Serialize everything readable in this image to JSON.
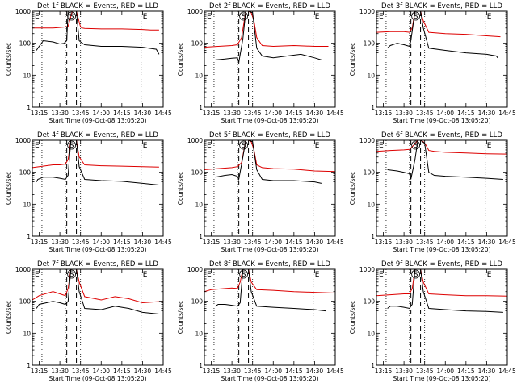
{
  "chart_data": [
    {
      "type": "line",
      "title": "Det 1f BLACK = Events, RED = LLD",
      "xlabel": "Start Time (09-Oct-08 13:05:20)",
      "ylabel": "Counts/sec",
      "yscale": "log",
      "ylim": [
        1,
        1000
      ],
      "xlim": [
        "13:10",
        "14:45"
      ],
      "xticks": [
        "13:15",
        "13:30",
        "13:45",
        "14:00",
        "14:15",
        "14:30",
        "14:45"
      ],
      "yticks": [
        "1",
        "10",
        "100",
        "1000"
      ],
      "markers": {
        "E1": "E",
        "S": "S",
        "E2": "E"
      },
      "series": [
        {
          "color": "#dd0000",
          "x": [
            "13:10",
            "13:25",
            "13:29",
            "13:33",
            "13:36",
            "13:39",
            "13:42",
            "13:45",
            "13:46",
            "13:48",
            "14:00",
            "14:15",
            "14:30",
            "14:36",
            "14:42"
          ],
          "y": [
            300,
            300,
            310,
            320,
            340,
            1000,
            1000,
            320,
            300,
            290,
            280,
            280,
            270,
            260,
            260
          ]
        },
        {
          "color": "#000000",
          "x": [
            "13:13",
            "13:14",
            "13:18",
            "13:25",
            "13:30",
            "13:33",
            "13:35",
            "13:36",
            "13:42",
            "13:44",
            "13:45",
            "13:48",
            "14:00",
            "14:15",
            "14:30",
            "14:40",
            "14:42"
          ],
          "y": [
            60,
            70,
            120,
            110,
            95,
            100,
            120,
            1000,
            1000,
            120,
            110,
            90,
            80,
            80,
            75,
            65,
            45
          ]
        }
      ],
      "vlines_dotted": [
        "13:17",
        "13:34",
        "13:45",
        "14:29"
      ],
      "vlines_dashed": [
        "13:35",
        "13:42"
      ]
    },
    {
      "type": "line",
      "title": "Det 2f BLACK = Events, RED = LLD",
      "xlabel": "Start Time (09-Oct-08 13:05:20)",
      "ylabel": "Counts/sec",
      "yscale": "log",
      "ylim": [
        1,
        1000
      ],
      "xlim": [
        "13:10",
        "14:45"
      ],
      "xticks": [
        "13:15",
        "13:30",
        "13:45",
        "14:00",
        "14:15",
        "14:30",
        "14:45"
      ],
      "yticks": [
        "1",
        "10",
        "100",
        "1000"
      ],
      "markers": {
        "E1": "E",
        "S": "S",
        "E2": "E"
      },
      "series": [
        {
          "color": "#dd0000",
          "x": [
            "13:10",
            "13:20",
            "13:30",
            "13:34",
            "13:37",
            "13:40",
            "13:42",
            "13:44",
            "13:46",
            "13:48",
            "13:52",
            "14:00",
            "14:15",
            "14:30",
            "14:40"
          ],
          "y": [
            75,
            80,
            85,
            90,
            150,
            1000,
            1000,
            900,
            500,
            150,
            85,
            80,
            85,
            80,
            80
          ]
        },
        {
          "color": "#000000",
          "x": [
            "13:18",
            "13:25",
            "13:30",
            "13:34",
            "13:35",
            "13:38",
            "13:40",
            "13:42",
            "13:45",
            "13:48",
            "13:52",
            "14:00",
            "14:10",
            "14:20",
            "14:30",
            "14:35"
          ],
          "y": [
            30,
            32,
            34,
            35,
            25,
            140,
            1000,
            1000,
            900,
            70,
            40,
            35,
            40,
            45,
            35,
            30
          ]
        }
      ],
      "vlines_dotted": [
        "13:17",
        "13:34",
        "13:45",
        "14:29"
      ],
      "vlines_dashed": [
        "13:35",
        "13:42"
      ]
    },
    {
      "type": "line",
      "title": "Det 3f BLACK = Events, RED = LLD",
      "xlabel": "Start Time (09-Oct-08 13:05:20)",
      "ylabel": "Counts/sec",
      "yscale": "log",
      "ylim": [
        1,
        1000
      ],
      "xlim": [
        "13:10",
        "14:45"
      ],
      "xticks": [
        "13:15",
        "13:30",
        "13:45",
        "14:00",
        "14:15",
        "14:30",
        "14:45"
      ],
      "yticks": [
        "1",
        "10",
        "100",
        "1000"
      ],
      "markers": {
        "E1": "E",
        "S": "S",
        "E2": "E"
      },
      "series": [
        {
          "color": "#dd0000",
          "x": [
            "13:10",
            "13:20",
            "13:30",
            "13:34",
            "13:36",
            "13:38",
            "13:42",
            "13:44",
            "13:48",
            "14:00",
            "14:15",
            "14:30",
            "14:40"
          ],
          "y": [
            220,
            230,
            230,
            220,
            300,
            1000,
            1000,
            500,
            220,
            200,
            190,
            170,
            160
          ]
        },
        {
          "color": "#000000",
          "x": [
            "13:18",
            "13:20",
            "13:25",
            "13:30",
            "13:34",
            "13:35",
            "13:38",
            "13:42",
            "13:44",
            "13:48",
            "14:00",
            "14:15",
            "14:30",
            "14:37",
            "14:38"
          ],
          "y": [
            70,
            85,
            100,
            90,
            80,
            120,
            1000,
            1000,
            300,
            70,
            60,
            50,
            45,
            40,
            35
          ]
        }
      ],
      "vlines_dotted": [
        "13:17",
        "13:34",
        "13:45",
        "14:29"
      ],
      "vlines_dashed": [
        "13:35",
        "13:42"
      ]
    },
    {
      "type": "line",
      "title": "Det 4f BLACK = Events, RED = LLD",
      "xlabel": "Start Time (09-Oct-08 13:05:20)",
      "ylabel": "Counts/sec",
      "yscale": "log",
      "ylim": [
        1,
        1000
      ],
      "xlim": [
        "13:10",
        "14:45"
      ],
      "xticks": [
        "13:15",
        "13:30",
        "13:45",
        "14:00",
        "14:15",
        "14:30",
        "14:45"
      ],
      "yticks": [
        "1",
        "10",
        "100",
        "1000"
      ],
      "markers": {
        "E1": "E",
        "S": "S",
        "E2": "E"
      },
      "series": [
        {
          "color": "#dd0000",
          "x": [
            "13:10",
            "13:15",
            "13:25",
            "13:30",
            "13:34",
            "13:36",
            "13:38",
            "13:42",
            "13:44",
            "13:48",
            "14:00",
            "14:15",
            "14:30",
            "14:42"
          ],
          "y": [
            140,
            150,
            170,
            170,
            180,
            250,
            1000,
            1000,
            300,
            170,
            160,
            155,
            150,
            145
          ]
        },
        {
          "color": "#000000",
          "x": [
            "13:13",
            "13:14",
            "13:18",
            "13:25",
            "13:30",
            "13:34",
            "13:36",
            "13:38",
            "13:42",
            "13:44",
            "13:48",
            "14:00",
            "14:15",
            "14:30",
            "14:42"
          ],
          "y": [
            50,
            60,
            70,
            70,
            65,
            60,
            80,
            1000,
            1000,
            150,
            60,
            55,
            52,
            45,
            40
          ]
        }
      ],
      "vlines_dotted": [
        "13:17",
        "13:34",
        "13:45",
        "14:29"
      ],
      "vlines_dashed": [
        "13:35",
        "13:42"
      ]
    },
    {
      "type": "line",
      "title": "Det 5f BLACK = Events, RED = LLD",
      "xlabel": "Start Time (09-Oct-08 13:05:20)",
      "ylabel": "Counts/sec",
      "yscale": "log",
      "ylim": [
        1,
        1000
      ],
      "xlim": [
        "13:10",
        "14:45"
      ],
      "xticks": [
        "13:15",
        "13:30",
        "13:45",
        "14:00",
        "14:15",
        "14:30",
        "14:45"
      ],
      "yticks": [
        "1",
        "10",
        "100",
        "1000"
      ],
      "markers": {
        "E1": "E",
        "S": "S",
        "E2": "E"
      },
      "series": [
        {
          "color": "#dd0000",
          "x": [
            "13:10",
            "13:20",
            "13:30",
            "13:34",
            "13:37",
            "13:40",
            "13:42",
            "13:44",
            "13:46",
            "13:48",
            "13:52",
            "14:00",
            "14:15",
            "14:30",
            "14:45"
          ],
          "y": [
            120,
            130,
            140,
            150,
            200,
            1000,
            1000,
            900,
            500,
            170,
            140,
            130,
            125,
            110,
            105
          ]
        },
        {
          "color": "#000000",
          "x": [
            "13:18",
            "13:25",
            "13:30",
            "13:34",
            "13:35",
            "13:38",
            "13:40",
            "13:42",
            "13:45",
            "13:48",
            "13:52",
            "14:00",
            "14:15",
            "14:30",
            "14:35"
          ],
          "y": [
            70,
            80,
            85,
            75,
            60,
            300,
            1000,
            1000,
            900,
            120,
            60,
            55,
            55,
            50,
            45
          ]
        }
      ],
      "vlines_dotted": [
        "13:17",
        "13:34",
        "13:45",
        "14:29"
      ],
      "vlines_dashed": [
        "13:35",
        "13:42"
      ]
    },
    {
      "type": "line",
      "title": "Det 6f BLACK = Events, RED = LLD",
      "xlabel": "Start Time (09-Oct-08 13:05:20)",
      "ylabel": "Counts/sec",
      "yscale": "log",
      "ylim": [
        1,
        1000
      ],
      "xlim": [
        "13:10",
        "14:45"
      ],
      "xticks": [
        "13:15",
        "13:30",
        "13:45",
        "14:00",
        "14:15",
        "14:30",
        "14:45"
      ],
      "yticks": [
        "1",
        "10",
        "100",
        "1000"
      ],
      "markers": {
        "E1": "E",
        "S": "S",
        "E2": "E"
      },
      "series": [
        {
          "color": "#dd0000",
          "x": [
            "13:10",
            "13:20",
            "13:30",
            "13:34",
            "13:37",
            "13:40",
            "13:42",
            "13:44",
            "13:46",
            "13:48",
            "13:52",
            "14:00",
            "14:15",
            "14:30",
            "14:45"
          ],
          "y": [
            450,
            480,
            500,
            520,
            700,
            1000,
            1000,
            900,
            700,
            480,
            450,
            420,
            400,
            380,
            370
          ]
        },
        {
          "color": "#000000",
          "x": [
            "13:18",
            "13:25",
            "13:30",
            "13:34",
            "13:35",
            "13:38",
            "13:40",
            "13:42",
            "13:45",
            "13:48",
            "13:52",
            "14:00",
            "14:15",
            "14:30",
            "14:42"
          ],
          "y": [
            120,
            110,
            100,
            90,
            60,
            250,
            1000,
            1000,
            800,
            100,
            80,
            75,
            70,
            65,
            60
          ]
        }
      ],
      "vlines_dotted": [
        "13:17",
        "13:34",
        "13:45",
        "14:29"
      ],
      "vlines_dashed": [
        "13:35",
        "13:42"
      ]
    },
    {
      "type": "line",
      "title": "Det 7f BLACK = Events, RED = LLD",
      "xlabel": "Start Time (09-Oct-08 13:05:20)",
      "ylabel": "Counts/sec",
      "yscale": "log",
      "ylim": [
        1,
        1000
      ],
      "xlim": [
        "13:10",
        "14:45"
      ],
      "xticks": [
        "13:15",
        "13:30",
        "13:45",
        "14:00",
        "14:15",
        "14:30",
        "14:45"
      ],
      "yticks": [
        "1",
        "10",
        "100",
        "1000"
      ],
      "markers": {
        "E1": "E",
        "S": "S",
        "E2": "E"
      },
      "series": [
        {
          "color": "#dd0000",
          "x": [
            "13:10",
            "13:15",
            "13:25",
            "13:30",
            "13:34",
            "13:36",
            "13:38",
            "13:42",
            "13:44",
            "13:48",
            "14:00",
            "14:10",
            "14:20",
            "14:30",
            "14:45"
          ],
          "y": [
            110,
            150,
            200,
            170,
            150,
            250,
            1000,
            1000,
            400,
            140,
            110,
            140,
            120,
            90,
            100
          ]
        },
        {
          "color": "#000000",
          "x": [
            "13:13",
            "13:15",
            "13:25",
            "13:30",
            "13:34",
            "13:36",
            "13:38",
            "13:42",
            "13:44",
            "13:48",
            "14:00",
            "14:10",
            "14:20",
            "14:30",
            "14:42"
          ],
          "y": [
            60,
            80,
            100,
            90,
            80,
            100,
            1000,
            1000,
            200,
            60,
            55,
            70,
            60,
            45,
            40
          ]
        }
      ],
      "vlines_dotted": [
        "13:17",
        "13:34",
        "13:45",
        "14:29"
      ],
      "vlines_dashed": [
        "13:35",
        "13:42"
      ]
    },
    {
      "type": "line",
      "title": "Det 8f BLACK = Events, RED = LLD",
      "xlabel": "Start Time (09-Oct-08 13:05:20)",
      "ylabel": "Counts/sec",
      "yscale": "log",
      "ylim": [
        1,
        1000
      ],
      "xlim": [
        "13:10",
        "14:45"
      ],
      "xticks": [
        "13:15",
        "13:30",
        "13:45",
        "14:00",
        "14:15",
        "14:30",
        "14:45"
      ],
      "yticks": [
        "1",
        "10",
        "100",
        "1000"
      ],
      "markers": {
        "E1": "E",
        "S": "S",
        "E2": "E"
      },
      "series": [
        {
          "color": "#dd0000",
          "x": [
            "13:10",
            "13:15",
            "13:25",
            "13:30",
            "13:34",
            "13:36",
            "13:38",
            "13:42",
            "13:44",
            "13:48",
            "14:00",
            "14:15",
            "14:30",
            "14:45"
          ],
          "y": [
            200,
            230,
            250,
            260,
            250,
            400,
            1000,
            1000,
            400,
            230,
            220,
            200,
            190,
            180
          ]
        },
        {
          "color": "#000000",
          "x": [
            "13:18",
            "13:20",
            "13:25",
            "13:30",
            "13:34",
            "13:36",
            "13:38",
            "13:42",
            "13:44",
            "13:48",
            "14:00",
            "14:15",
            "14:30",
            "14:38"
          ],
          "y": [
            70,
            80,
            80,
            75,
            70,
            90,
            1000,
            1000,
            200,
            70,
            65,
            60,
            55,
            50
          ]
        }
      ],
      "vlines_dotted": [
        "13:17",
        "13:34",
        "13:45",
        "14:29"
      ],
      "vlines_dashed": [
        "13:35",
        "13:42"
      ]
    },
    {
      "type": "line",
      "title": "Det 9f BLACK = Events, RED = LLD",
      "xlabel": "Start Time (09-Oct-08 13:05:20)",
      "ylabel": "Counts/sec",
      "yscale": "log",
      "ylim": [
        1,
        1000
      ],
      "xlim": [
        "13:10",
        "14:45"
      ],
      "xticks": [
        "13:15",
        "13:30",
        "13:45",
        "14:00",
        "14:15",
        "14:30",
        "14:45"
      ],
      "yticks": [
        "1",
        "10",
        "100",
        "1000"
      ],
      "markers": {
        "E1": "E",
        "S": "S",
        "E2": "E"
      },
      "series": [
        {
          "color": "#dd0000",
          "x": [
            "13:10",
            "13:20",
            "13:30",
            "13:34",
            "13:36",
            "13:38",
            "13:42",
            "13:44",
            "13:48",
            "14:00",
            "14:15",
            "14:30",
            "14:45"
          ],
          "y": [
            150,
            160,
            170,
            170,
            250,
            1000,
            1000,
            400,
            170,
            160,
            150,
            150,
            145
          ]
        },
        {
          "color": "#000000",
          "x": [
            "13:18",
            "13:20",
            "13:25",
            "13:30",
            "13:34",
            "13:36",
            "13:38",
            "13:42",
            "13:44",
            "13:48",
            "14:00",
            "14:15",
            "14:30",
            "14:42"
          ],
          "y": [
            60,
            70,
            70,
            65,
            60,
            80,
            1000,
            1000,
            200,
            60,
            55,
            50,
            48,
            45
          ]
        }
      ],
      "vlines_dotted": [
        "13:17",
        "13:34",
        "13:45",
        "14:29"
      ],
      "vlines_dashed": [
        "13:35",
        "13:42"
      ]
    }
  ]
}
